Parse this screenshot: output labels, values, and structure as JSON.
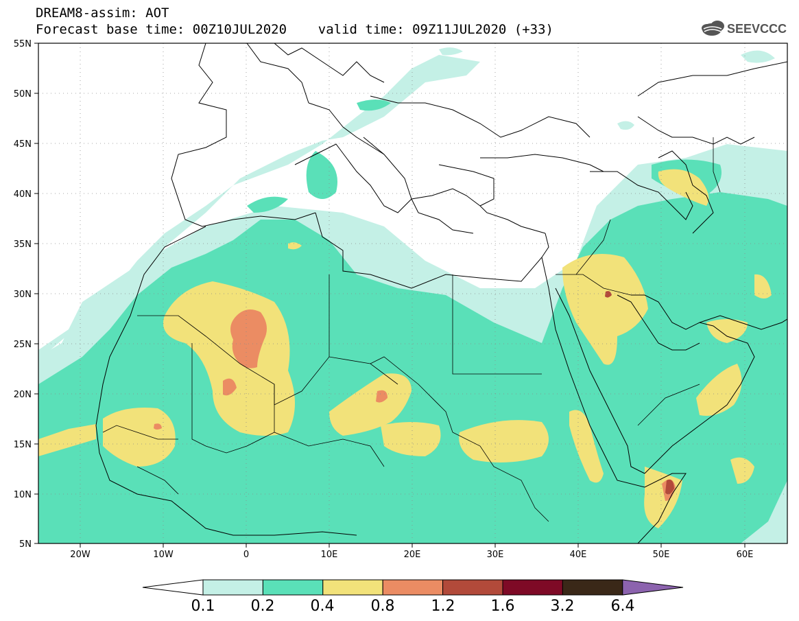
{
  "header": {
    "line1": "DREAM8-assim: AOT",
    "line2": "Forecast base time: 00Z10JUL2020    valid time: 09Z11JUL2020 (+33)",
    "logo_text": "SEEVCCC"
  },
  "map": {
    "lon_range": [
      -25,
      65
    ],
    "lat_range": [
      5,
      55
    ],
    "lon_ticks": [
      "20W",
      "10W",
      "0",
      "10E",
      "20E",
      "30E",
      "40E",
      "50E",
      "60E"
    ],
    "lat_ticks": [
      "55N",
      "50N",
      "45N",
      "40N",
      "35N",
      "30N",
      "25N",
      "20N",
      "15N",
      "10N",
      "5N"
    ]
  },
  "colorbar": {
    "labels": [
      "0.1",
      "0.2",
      "0.4",
      "0.8",
      "1.2",
      "1.6",
      "3.2",
      "6.4"
    ],
    "colors": [
      "#ffffff",
      "#c4f0e6",
      "#5ae0b8",
      "#f2e27a",
      "#eb8c63",
      "#b24a3a",
      "#7e0a26",
      "#3a2818",
      "#8c63ae"
    ]
  },
  "legend_colors": {
    "c1": "#c4f0e6",
    "c2": "#5ae0b8",
    "c3": "#f2e27a",
    "c4": "#eb8c63",
    "c5": "#b24a3a"
  }
}
